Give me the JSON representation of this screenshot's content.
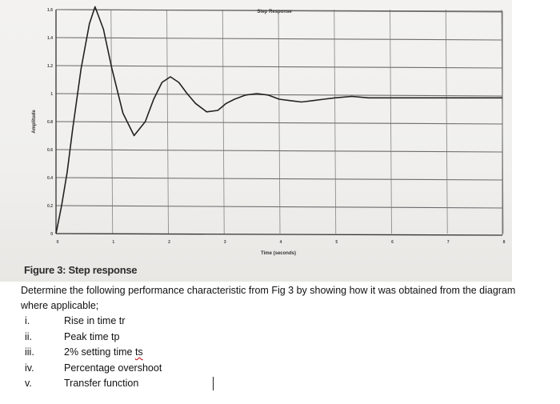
{
  "figure": {
    "caption": "Figure 3: Step response",
    "chart_data": {
      "type": "line",
      "title": "Step Response",
      "xlabel": "Time (seconds)",
      "ylabel": "Amplitude",
      "xlim": [
        0,
        8
      ],
      "ylim": [
        0,
        1.6
      ],
      "xticks": [
        "0",
        "1",
        "2",
        "3",
        "4",
        "5",
        "6",
        "7",
        "8"
      ],
      "yticks": [
        "0",
        "0.2",
        "0.4",
        "0.6",
        "0.8",
        "1",
        "1.2",
        "1.4",
        "1.6"
      ],
      "grid": true,
      "series": [
        {
          "x": [
            0,
            0.1,
            0.2,
            0.3,
            0.45,
            0.6,
            0.7,
            0.85,
            1.0,
            1.2,
            1.4,
            1.6,
            1.75,
            1.9,
            2.05,
            2.2,
            2.35,
            2.5,
            2.7,
            2.9,
            3.05,
            3.2,
            3.4,
            3.6,
            3.8,
            4.0,
            4.2,
            4.4,
            4.6,
            4.8,
            5.0,
            5.3,
            5.6,
            6.0,
            6.5,
            7.0,
            7.5,
            8.0
          ],
          "y": [
            0,
            0.2,
            0.44,
            0.75,
            1.18,
            1.5,
            1.62,
            1.46,
            1.18,
            0.86,
            0.7,
            0.8,
            0.96,
            1.08,
            1.12,
            1.08,
            1.0,
            0.93,
            0.87,
            0.88,
            0.93,
            0.96,
            0.99,
            1.0,
            0.99,
            0.96,
            0.95,
            0.94,
            0.95,
            0.96,
            0.97,
            0.98,
            0.97,
            0.97,
            0.97,
            0.97,
            0.97,
            0.97
          ]
        }
      ]
    }
  },
  "question": "Determine the following performance characteristic from Fig 3 by showing how it was obtained from the diagram where applicable;",
  "items": [
    {
      "num": "i.",
      "text": "Rise in time tr"
    },
    {
      "num": "ii.",
      "text": "Peak time tp"
    },
    {
      "num": "iii.",
      "text_before": "2% setting time ",
      "text_squiggle": "ts"
    },
    {
      "num": "iv.",
      "text": "Percentage overshoot"
    },
    {
      "num": "v.",
      "text": "Transfer function"
    }
  ]
}
